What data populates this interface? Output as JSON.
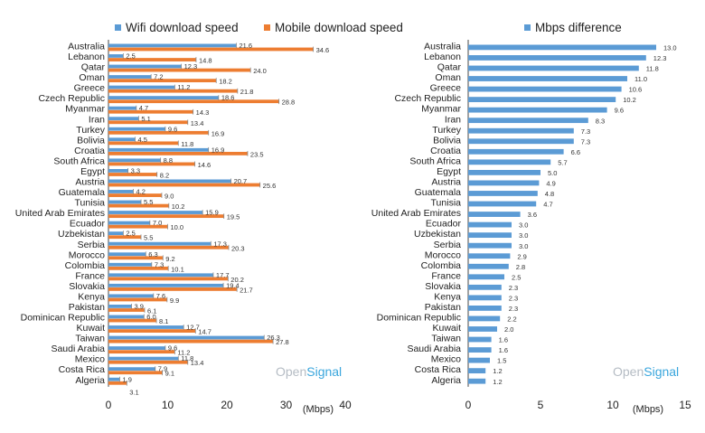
{
  "colors": {
    "wifi": "#5b9bd5",
    "mobile": "#ed7d31",
    "diff": "#5b9bd5",
    "axis": "#444444",
    "brand_open": "#b5bcc4",
    "brand_signal": "#3aa6dd"
  },
  "brand": {
    "open": "Open",
    "signal": "Signal"
  },
  "chart_data": [
    {
      "type": "bar",
      "orientation": "horizontal",
      "xlabel": "(Mbps)",
      "xlim": [
        0,
        40
      ],
      "xticks": [
        0,
        10,
        20,
        30,
        40
      ],
      "legend_position": "top",
      "categories": [
        "Australia",
        "Lebanon",
        "Qatar",
        "Oman",
        "Greece",
        "Czech Republic",
        "Myanmar",
        "Iran",
        "Turkey",
        "Bolivia",
        "Croatia",
        "South Africa",
        "Egypt",
        "Austria",
        "Guatemala",
        "Tunisia",
        "United Arab Emirates",
        "Ecuador",
        "Uzbekistan",
        "Serbia",
        "Morocco",
        "Colombia",
        "France",
        "Slovakia",
        "Kenya",
        "Pakistan",
        "Dominican Republic",
        "Kuwait",
        "Taiwan",
        "Saudi Arabia",
        "Mexico",
        "Costa Rica",
        "Algeria"
      ],
      "series": [
        {
          "name": "Wifi download speed",
          "values": [
            21.6,
            2.5,
            12.3,
            7.2,
            11.2,
            18.6,
            4.7,
            5.1,
            9.6,
            4.5,
            16.9,
            8.8,
            3.3,
            20.7,
            4.2,
            5.5,
            15.9,
            7.0,
            2.5,
            17.3,
            6.3,
            7.3,
            17.7,
            19.4,
            7.6,
            3.9,
            6.0,
            12.7,
            26.3,
            9.6,
            11.8,
            7.9,
            1.9
          ]
        },
        {
          "name": "Mobile download speed",
          "values": [
            34.6,
            14.8,
            24.0,
            18.2,
            21.8,
            28.8,
            14.3,
            13.4,
            16.9,
            11.8,
            23.5,
            14.6,
            8.2,
            25.6,
            9.0,
            10.2,
            19.5,
            10.0,
            5.5,
            20.3,
            9.2,
            10.1,
            20.2,
            21.7,
            9.9,
            6.1,
            8.1,
            14.7,
            27.8,
            11.2,
            13.4,
            9.1,
            3.1
          ]
        }
      ]
    },
    {
      "type": "bar",
      "orientation": "horizontal",
      "xlabel": "(Mbps)",
      "xlim": [
        0,
        15
      ],
      "xticks": [
        0,
        5,
        10,
        15
      ],
      "legend_position": "top",
      "categories": [
        "Australia",
        "Lebanon",
        "Qatar",
        "Oman",
        "Greece",
        "Czech Republic",
        "Myanmar",
        "Iran",
        "Turkey",
        "Bolivia",
        "Croatia",
        "South Africa",
        "Egypt",
        "Austria",
        "Guatemala",
        "Tunisia",
        "United Arab Emirates",
        "Ecuador",
        "Uzbekistan",
        "Serbia",
        "Morocco",
        "Colombia",
        "France",
        "Slovakia",
        "Kenya",
        "Pakistan",
        "Dominican Republic",
        "Kuwait",
        "Taiwan",
        "Saudi Arabia",
        "Mexico",
        "Costa Rica",
        "Algeria"
      ],
      "series": [
        {
          "name": "Mbps difference",
          "values": [
            13.0,
            12.3,
            11.8,
            11.0,
            10.6,
            10.2,
            9.6,
            8.3,
            7.3,
            7.3,
            6.6,
            5.7,
            5.0,
            4.9,
            4.8,
            4.7,
            3.6,
            3.0,
            3.0,
            3.0,
            2.9,
            2.8,
            2.5,
            2.3,
            2.3,
            2.3,
            2.2,
            2.0,
            1.6,
            1.6,
            1.5,
            1.2,
            1.2
          ]
        }
      ]
    }
  ]
}
